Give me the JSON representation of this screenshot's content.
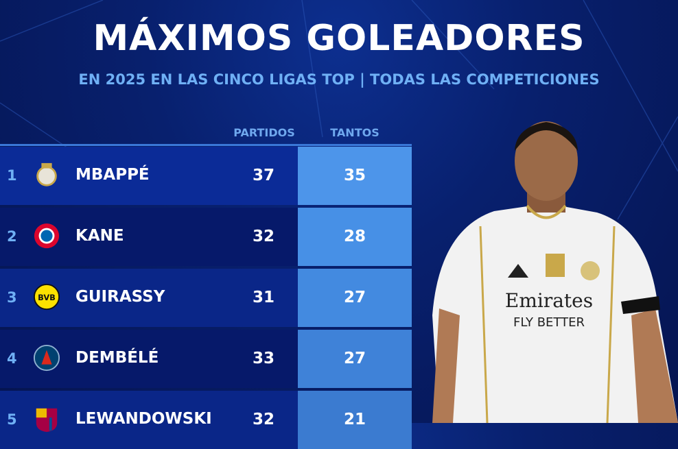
{
  "header": {
    "title": "MÁXIMOS GOLEADORES",
    "subtitle": "EN 2025 EN LAS CINCO LIGAS TOP | TODAS LAS COMPETICIONES"
  },
  "columns": {
    "matches": "PARTIDOS",
    "goals": "TANTOS"
  },
  "rows": [
    {
      "rank": "1",
      "club": "Real Madrid",
      "name": "MBAPPÉ",
      "matches": "37",
      "goals": "35"
    },
    {
      "rank": "2",
      "club": "Bayern München",
      "name": "KANE",
      "matches": "32",
      "goals": "28"
    },
    {
      "rank": "3",
      "club": "Borussia Dortmund",
      "name": "GUIRASSY",
      "matches": "31",
      "goals": "27"
    },
    {
      "rank": "4",
      "club": "Paris Saint-Germain",
      "name": "DEMBÉLÉ",
      "matches": "33",
      "goals": "27"
    },
    {
      "rank": "5",
      "club": "FC Barcelona",
      "name": "LEWANDOWSKI",
      "matches": "32",
      "goals": "21"
    }
  ],
  "shirt": {
    "sponsor": "Emirates",
    "tagline": "FLY BETTER"
  },
  "colors": {
    "background": "#08206e",
    "accent": "#6fb0f5",
    "goals_column": "#4a90e0"
  }
}
